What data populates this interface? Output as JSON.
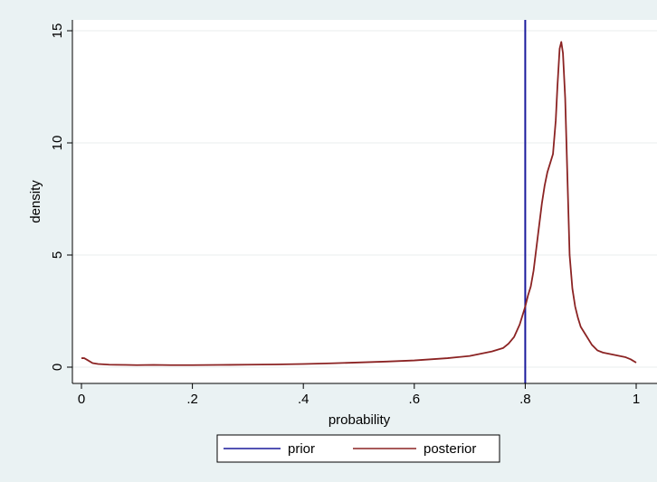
{
  "chart_data": {
    "type": "line",
    "title": "",
    "xlabel": "probability",
    "ylabel": "density",
    "xlim": [
      0,
      1
    ],
    "ylim": [
      0,
      15
    ],
    "xticks": [
      {
        "value": 0,
        "label": "0"
      },
      {
        "value": 0.2,
        "label": ".2"
      },
      {
        "value": 0.4,
        "label": ".4"
      },
      {
        "value": 0.6,
        "label": ".6"
      },
      {
        "value": 0.8,
        "label": ".8"
      },
      {
        "value": 1,
        "label": "1"
      }
    ],
    "yticks": [
      {
        "value": 0,
        "label": "0"
      },
      {
        "value": 5,
        "label": "5"
      },
      {
        "value": 10,
        "label": "10"
      },
      {
        "value": 15,
        "label": "15"
      }
    ],
    "grid": true,
    "legend_position": "bottom",
    "series": [
      {
        "name": "prior",
        "kind": "vertical-line",
        "color": "#1a1a9c",
        "x": 0.8
      },
      {
        "name": "posterior",
        "kind": "curve",
        "color": "#8b2323",
        "points": [
          [
            0.0,
            0.4
          ],
          [
            0.005,
            0.4
          ],
          [
            0.01,
            0.33
          ],
          [
            0.02,
            0.18
          ],
          [
            0.03,
            0.14
          ],
          [
            0.05,
            0.11
          ],
          [
            0.08,
            0.1
          ],
          [
            0.1,
            0.09
          ],
          [
            0.13,
            0.1
          ],
          [
            0.16,
            0.09
          ],
          [
            0.2,
            0.09
          ],
          [
            0.25,
            0.1
          ],
          [
            0.3,
            0.11
          ],
          [
            0.35,
            0.12
          ],
          [
            0.4,
            0.14
          ],
          [
            0.45,
            0.17
          ],
          [
            0.5,
            0.21
          ],
          [
            0.55,
            0.25
          ],
          [
            0.6,
            0.3
          ],
          [
            0.63,
            0.35
          ],
          [
            0.66,
            0.4
          ],
          [
            0.7,
            0.5
          ],
          [
            0.72,
            0.6
          ],
          [
            0.74,
            0.7
          ],
          [
            0.76,
            0.85
          ],
          [
            0.77,
            1.05
          ],
          [
            0.78,
            1.35
          ],
          [
            0.79,
            1.9
          ],
          [
            0.8,
            2.7
          ],
          [
            0.805,
            3.2
          ],
          [
            0.81,
            3.6
          ],
          [
            0.815,
            4.3
          ],
          [
            0.82,
            5.3
          ],
          [
            0.825,
            6.3
          ],
          [
            0.83,
            7.3
          ],
          [
            0.835,
            8.1
          ],
          [
            0.84,
            8.7
          ],
          [
            0.845,
            9.1
          ],
          [
            0.85,
            9.5
          ],
          [
            0.855,
            11.0
          ],
          [
            0.858,
            12.5
          ],
          [
            0.862,
            14.2
          ],
          [
            0.865,
            14.5
          ],
          [
            0.868,
            14.0
          ],
          [
            0.872,
            12.0
          ],
          [
            0.876,
            8.5
          ],
          [
            0.88,
            5.0
          ],
          [
            0.885,
            3.5
          ],
          [
            0.89,
            2.7
          ],
          [
            0.895,
            2.2
          ],
          [
            0.9,
            1.8
          ],
          [
            0.91,
            1.4
          ],
          [
            0.92,
            1.0
          ],
          [
            0.93,
            0.75
          ],
          [
            0.94,
            0.65
          ],
          [
            0.95,
            0.6
          ],
          [
            0.96,
            0.55
          ],
          [
            0.97,
            0.5
          ],
          [
            0.98,
            0.45
          ],
          [
            0.99,
            0.35
          ],
          [
            1.0,
            0.2
          ]
        ]
      }
    ]
  }
}
